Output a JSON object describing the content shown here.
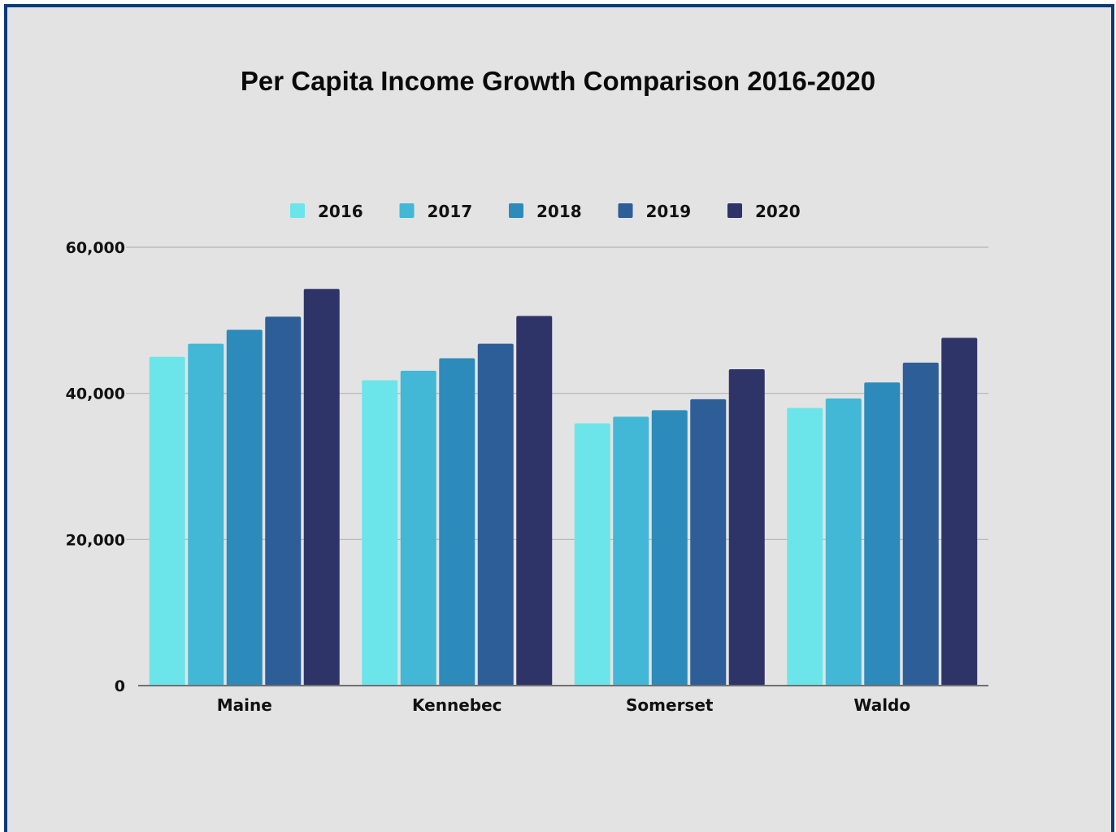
{
  "chart_data": {
    "type": "bar",
    "title": "Per Capita Income Growth Comparison 2016-2020",
    "categories": [
      "Maine",
      "Kennebec",
      "Somerset",
      "Waldo"
    ],
    "series": [
      {
        "name": "2016",
        "color": "#6ce5ea",
        "values": [
          45000,
          41800,
          35900,
          38000
        ]
      },
      {
        "name": "2017",
        "color": "#42b7d6",
        "values": [
          46800,
          43100,
          36800,
          39300
        ]
      },
      {
        "name": "2018",
        "color": "#2d8bbb",
        "values": [
          48700,
          44800,
          37700,
          41500
        ]
      },
      {
        "name": "2019",
        "color": "#2e5e98",
        "values": [
          50500,
          46800,
          39200,
          44200
        ]
      },
      {
        "name": "2020",
        "color": "#2f3468",
        "values": [
          54300,
          50600,
          43300,
          47600
        ]
      }
    ],
    "ylim": [
      0,
      60000
    ],
    "yticks": [
      0,
      20000,
      40000,
      60000
    ],
    "ytick_labels": [
      "0",
      "20,000",
      "40,000",
      "60,000"
    ],
    "xlabel": "",
    "ylabel": "",
    "grid": true,
    "legend_position": "top-center"
  }
}
